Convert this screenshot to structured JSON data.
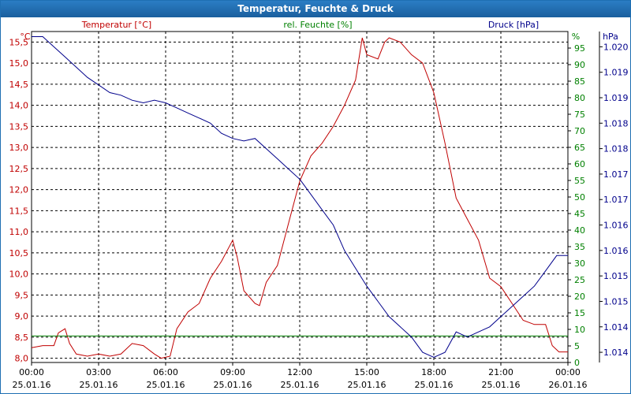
{
  "window": {
    "title": "Temperatur, Feuchte & Druck"
  },
  "chart_data": {
    "type": "line",
    "title": "Temperatur, Feuchte & Druck",
    "x_hours_range": [
      0,
      24
    ],
    "x_ticks": [
      {
        "h": 0,
        "time": "00:00",
        "date": "25.01.16"
      },
      {
        "h": 3,
        "time": "03:00",
        "date": "25.01.16"
      },
      {
        "h": 6,
        "time": "06:00",
        "date": "25.01.16"
      },
      {
        "h": 9,
        "time": "09:00",
        "date": "25.01.16"
      },
      {
        "h": 12,
        "time": "12:00",
        "date": "25.01.16"
      },
      {
        "h": 15,
        "time": "15:00",
        "date": "25.01.16"
      },
      {
        "h": 18,
        "time": "18:00",
        "date": "25.01.16"
      },
      {
        "h": 21,
        "time": "21:00",
        "date": "25.01.16"
      },
      {
        "h": 24,
        "time": "00:00",
        "date": "26.01.16"
      }
    ],
    "axes": {
      "temperature": {
        "label": "Temperatur [°C]",
        "unit": "°C",
        "color": "#c00000",
        "ylim": [
          7.9,
          15.75
        ],
        "ticks": [
          "8,0",
          "8,5",
          "9,0",
          "9,5",
          "10,0",
          "10,5",
          "11,0",
          "11,5",
          "12,0",
          "12,5",
          "13,0",
          "13,5",
          "14,0",
          "14,5",
          "15,0",
          "15,5"
        ]
      },
      "humidity": {
        "label": "rel. Feuchte [%]",
        "unit": "%",
        "color": "#008000",
        "ylim": [
          0,
          100
        ],
        "ticks": [
          "0",
          "5",
          "10",
          "15",
          "20",
          "25",
          "30",
          "35",
          "40",
          "45",
          "50",
          "55",
          "60",
          "65",
          "70",
          "75",
          "80",
          "85",
          "90",
          "95"
        ]
      },
      "pressure": {
        "label": "Druck [hPa]",
        "unit": "hPa",
        "color": "#00008b",
        "ylim": [
          1013.8,
          1020.3
        ],
        "ticks": [
          "1.014",
          "1.014",
          "1.015",
          "1.015",
          "1.016",
          "1.016",
          "1.017",
          "1.017",
          "1.018",
          "1.018",
          "1.019",
          "1.019",
          "1.020",
          "1.020"
        ]
      }
    },
    "series": [
      {
        "name": "Temperatur",
        "axis": "temperature",
        "color": "#c00000",
        "points": [
          [
            0,
            8.25
          ],
          [
            0.5,
            8.3
          ],
          [
            1,
            8.3
          ],
          [
            1.2,
            8.6
          ],
          [
            1.5,
            8.7
          ],
          [
            1.7,
            8.35
          ],
          [
            2,
            8.1
          ],
          [
            2.5,
            8.05
          ],
          [
            3,
            8.1
          ],
          [
            3.5,
            8.05
          ],
          [
            4,
            8.1
          ],
          [
            4.5,
            8.35
          ],
          [
            5,
            8.3
          ],
          [
            5.5,
            8.1
          ],
          [
            5.8,
            8.0
          ],
          [
            6.2,
            8.05
          ],
          [
            6.5,
            8.7
          ],
          [
            7,
            9.1
          ],
          [
            7.5,
            9.3
          ],
          [
            8,
            9.9
          ],
          [
            8.5,
            10.3
          ],
          [
            9,
            10.8
          ],
          [
            9.2,
            10.4
          ],
          [
            9.5,
            9.6
          ],
          [
            10,
            9.3
          ],
          [
            10.2,
            9.25
          ],
          [
            10.5,
            9.8
          ],
          [
            11,
            10.2
          ],
          [
            11.5,
            11.2
          ],
          [
            12,
            12.2
          ],
          [
            12.5,
            12.8
          ],
          [
            13,
            13.1
          ],
          [
            13.5,
            13.5
          ],
          [
            14,
            14.0
          ],
          [
            14.5,
            14.6
          ],
          [
            14.8,
            15.6
          ],
          [
            15,
            15.2
          ],
          [
            15.5,
            15.1
          ],
          [
            15.8,
            15.5
          ],
          [
            16,
            15.6
          ],
          [
            16.5,
            15.5
          ],
          [
            17,
            15.2
          ],
          [
            17.5,
            15.0
          ],
          [
            18,
            14.3
          ],
          [
            18.5,
            13.1
          ],
          [
            19,
            11.8
          ],
          [
            19.5,
            11.3
          ],
          [
            20,
            10.8
          ],
          [
            20.5,
            9.9
          ],
          [
            21,
            9.7
          ],
          [
            21.5,
            9.3
          ],
          [
            22,
            8.9
          ],
          [
            22.5,
            8.8
          ],
          [
            23,
            8.8
          ],
          [
            23.3,
            8.3
          ],
          [
            23.6,
            8.15
          ],
          [
            24,
            8.15
          ]
        ]
      },
      {
        "name": "rel. Feuchte",
        "axis": "humidity",
        "color": "#008000",
        "points": [
          [
            0,
            8.0
          ],
          [
            4,
            8.0
          ],
          [
            8,
            8.0
          ],
          [
            12,
            8.0
          ],
          [
            16,
            8.0
          ],
          [
            20,
            8.0
          ],
          [
            24,
            8.0
          ]
        ]
      },
      {
        "name": "Druck",
        "axis": "pressure",
        "color": "#00008b",
        "points": [
          [
            0,
            1020.2
          ],
          [
            0.5,
            1020.2
          ],
          [
            1,
            1020.0
          ],
          [
            1.5,
            1019.8
          ],
          [
            2,
            1019.6
          ],
          [
            2.5,
            1019.4
          ],
          [
            3,
            1019.25
          ],
          [
            3.5,
            1019.1
          ],
          [
            4,
            1019.05
          ],
          [
            4.5,
            1018.95
          ],
          [
            5,
            1018.9
          ],
          [
            5.5,
            1018.95
          ],
          [
            6,
            1018.9
          ],
          [
            6.5,
            1018.8
          ],
          [
            7,
            1018.7
          ],
          [
            7.5,
            1018.6
          ],
          [
            8,
            1018.5
          ],
          [
            8.5,
            1018.3
          ],
          [
            9,
            1018.2
          ],
          [
            9.5,
            1018.15
          ],
          [
            10,
            1018.2
          ],
          [
            10.5,
            1018.0
          ],
          [
            11,
            1017.8
          ],
          [
            11.5,
            1017.6
          ],
          [
            12,
            1017.4
          ],
          [
            12.5,
            1017.1
          ],
          [
            13,
            1016.8
          ],
          [
            13.5,
            1016.5
          ],
          [
            14,
            1016.0
          ],
          [
            14.5,
            1015.65
          ],
          [
            15,
            1015.3
          ],
          [
            15.5,
            1015.0
          ],
          [
            16,
            1014.7
          ],
          [
            16.5,
            1014.5
          ],
          [
            17,
            1014.3
          ],
          [
            17.5,
            1014.0
          ],
          [
            18,
            1013.9
          ],
          [
            18.5,
            1014.0
          ],
          [
            19,
            1014.4
          ],
          [
            19.5,
            1014.3
          ],
          [
            20,
            1014.4
          ],
          [
            20.5,
            1014.5
          ],
          [
            21,
            1014.7
          ],
          [
            21.5,
            1014.9
          ],
          [
            22,
            1015.1
          ],
          [
            22.5,
            1015.3
          ],
          [
            23,
            1015.6
          ],
          [
            23.5,
            1015.9
          ],
          [
            24,
            1015.9
          ]
        ]
      }
    ]
  }
}
